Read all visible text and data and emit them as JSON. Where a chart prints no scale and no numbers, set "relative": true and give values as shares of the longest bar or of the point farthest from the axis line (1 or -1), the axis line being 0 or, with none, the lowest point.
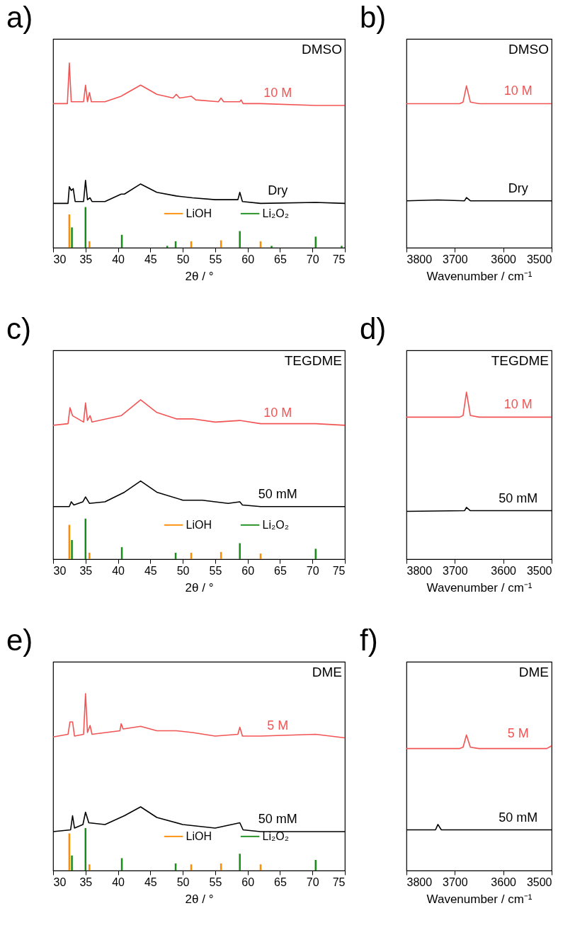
{
  "chart_data": [
    {
      "type": "line",
      "title": "a)",
      "xlabel": "2θ / °",
      "relative": true,
      "xlim": [
        30,
        75
      ],
      "xticks": [
        30,
        35,
        40,
        45,
        50,
        55,
        60,
        65,
        70,
        75
      ],
      "legend": "bottom right",
      "annotations": [
        "DMSO"
      ],
      "series": [
        {
          "name": "10 M",
          "color": "#f25454",
          "x": [
            30,
            32.2,
            32.5,
            32.8,
            34.7,
            35,
            35.3,
            35.6,
            35.9,
            38,
            40.5,
            41,
            43.5,
            46,
            48.5,
            49,
            49.5,
            51.3,
            52,
            55.5,
            55.9,
            56.3,
            58.8,
            59,
            59.3,
            62,
            70.5,
            75
          ],
          "values": [
            0.78,
            0.78,
            1.0,
            0.79,
            0.79,
            0.88,
            0.79,
            0.84,
            0.79,
            0.79,
            0.82,
            0.83,
            0.88,
            0.83,
            0.81,
            0.83,
            0.81,
            0.82,
            0.8,
            0.79,
            0.81,
            0.79,
            0.79,
            0.8,
            0.78,
            0.78,
            0.77,
            0.77
          ]
        },
        {
          "name": "Dry",
          "color": "#000000",
          "x": [
            30,
            32.3,
            32.5,
            32.8,
            33.1,
            33.4,
            34.7,
            35,
            35.3,
            35.7,
            36,
            38,
            40.5,
            41,
            43.5,
            46,
            49,
            51.5,
            55,
            58.5,
            58.8,
            59.2,
            62,
            70.5,
            75
          ],
          "values": [
            0.24,
            0.24,
            0.33,
            0.31,
            0.32,
            0.25,
            0.25,
            0.365,
            0.26,
            0.27,
            0.25,
            0.25,
            0.29,
            0.29,
            0.345,
            0.3,
            0.28,
            0.27,
            0.26,
            0.26,
            0.3,
            0.25,
            0.24,
            0.245,
            0.24
          ]
        },
        {
          "name": "LiOH",
          "type": "bar",
          "color": "#ff8c00",
          "x": [
            32.5,
            35.6,
            51.3,
            55.9,
            62
          ],
          "values": [
            0.18,
            0.035,
            0.035,
            0.04,
            0.035
          ]
        },
        {
          "name": "Li₂O₂",
          "type": "bar",
          "color": "#1a8c1a",
          "x": [
            32.9,
            35,
            40.6,
            47.6,
            48.9,
            58.8,
            63.7,
            70.5,
            74.5
          ],
          "values": [
            0.11,
            0.22,
            0.07,
            0.01,
            0.035,
            0.09,
            0.01,
            0.06,
            0.01
          ]
        }
      ]
    },
    {
      "type": "line",
      "title": "b)",
      "xlabel": "Wavenumber / cm⁻¹",
      "relative": true,
      "xlim": [
        3800,
        3500
      ],
      "xticks": [
        3800,
        3700,
        3600,
        3500
      ],
      "annotations": [
        "DMSO"
      ],
      "series": [
        {
          "name": "10 M",
          "color": "#f25454",
          "x": [
            3800,
            3690,
            3683,
            3676,
            3668,
            3660,
            3650,
            3500
          ],
          "values": [
            0.89,
            0.89,
            0.9,
            1.0,
            0.9,
            0.895,
            0.89,
            0.89
          ]
        },
        {
          "name": "Dry",
          "color": "#000000",
          "x": [
            3800,
            3735,
            3680,
            3676,
            3668,
            3500
          ],
          "values": [
            0.29,
            0.295,
            0.29,
            0.31,
            0.29,
            0.29
          ]
        }
      ]
    },
    {
      "type": "line",
      "title": "c)",
      "xlabel": "2θ / °",
      "relative": true,
      "xlim": [
        30,
        75
      ],
      "xticks": [
        30,
        35,
        40,
        45,
        50,
        55,
        60,
        65,
        70,
        75
      ],
      "legend": "bottom right",
      "annotations": [
        "TEGDME"
      ],
      "series": [
        {
          "name": "10 M",
          "color": "#f25454",
          "x": [
            30,
            32.3,
            32.6,
            33,
            34.7,
            35,
            35.3,
            35.7,
            36,
            40.5,
            43.5,
            46,
            49,
            51.5,
            55,
            58.8,
            62,
            70.5,
            75
          ],
          "values": [
            0.84,
            0.85,
            0.95,
            0.9,
            0.86,
            0.98,
            0.87,
            0.9,
            0.86,
            0.9,
            1.0,
            0.92,
            0.88,
            0.88,
            0.86,
            0.87,
            0.85,
            0.85,
            0.84
          ]
        },
        {
          "name": "50 mM",
          "color": "#000000",
          "x": [
            30,
            32.5,
            32.8,
            33.2,
            34.6,
            35,
            35.6,
            38,
            41,
            43.5,
            46,
            50,
            53,
            57,
            58.8,
            59.2,
            62,
            75
          ],
          "values": [
            0.33,
            0.33,
            0.36,
            0.34,
            0.36,
            0.39,
            0.35,
            0.36,
            0.42,
            0.49,
            0.42,
            0.37,
            0.37,
            0.35,
            0.36,
            0.34,
            0.33,
            0.33
          ]
        },
        {
          "name": "LiOH",
          "type": "bar",
          "color": "#ff8c00",
          "x": [
            32.5,
            35.6,
            51.3,
            55.9,
            62
          ],
          "values": [
            0.215,
            0.04,
            0.04,
            0.045,
            0.035
          ]
        },
        {
          "name": "Li₂O₂",
          "type": "bar",
          "color": "#1a8c1a",
          "x": [
            32.9,
            35,
            40.6,
            48.9,
            58.8,
            70.5
          ],
          "values": [
            0.12,
            0.254,
            0.075,
            0.04,
            0.1,
            0.065
          ]
        }
      ]
    },
    {
      "type": "line",
      "title": "d)",
      "xlabel": "Wavenumber / cm⁻¹",
      "relative": true,
      "xlim": [
        3800,
        3500
      ],
      "xticks": [
        3800,
        3700,
        3600,
        3500
      ],
      "annotations": [
        "TEGDME"
      ],
      "series": [
        {
          "name": "10 M",
          "color": "#f25454",
          "x": [
            3800,
            3690,
            3683,
            3676,
            3668,
            3650,
            3500
          ],
          "values": [
            0.85,
            0.85,
            0.86,
            1.0,
            0.86,
            0.85,
            0.85
          ]
        },
        {
          "name": "50 mM",
          "color": "#000000",
          "x": [
            3800,
            3680,
            3676,
            3668,
            3500
          ],
          "values": [
            0.286,
            0.29,
            0.31,
            0.29,
            0.29
          ]
        }
      ]
    },
    {
      "type": "line",
      "title": "e)",
      "xlabel": "2θ / °",
      "relative": true,
      "xlim": [
        30,
        75
      ],
      "xticks": [
        30,
        35,
        40,
        45,
        50,
        55,
        60,
        65,
        70,
        75
      ],
      "legend": "bottom right",
      "annotations": [
        "DME"
      ],
      "series": [
        {
          "name": "5 M",
          "color": "#f25454",
          "x": [
            30,
            32.3,
            32.6,
            33,
            33.3,
            34.7,
            35,
            35.3,
            35.7,
            36,
            40.3,
            40.5,
            40.8,
            43.5,
            46,
            49,
            51.5,
            55,
            58.5,
            58.8,
            59.2,
            62,
            70.5,
            75
          ],
          "values": [
            0.755,
            0.77,
            0.84,
            0.84,
            0.76,
            0.77,
            1.0,
            0.78,
            0.82,
            0.77,
            0.79,
            0.83,
            0.8,
            0.815,
            0.79,
            0.79,
            0.78,
            0.76,
            0.77,
            0.81,
            0.76,
            0.76,
            0.77,
            0.75
          ]
        },
        {
          "name": "50 mM",
          "color": "#000000",
          "x": [
            30,
            32.7,
            33,
            33.3,
            34.6,
            35,
            35.5,
            38,
            41,
            43.5,
            46,
            50,
            55,
            58.8,
            59.3,
            62,
            75
          ],
          "values": [
            0.22,
            0.23,
            0.31,
            0.24,
            0.26,
            0.33,
            0.27,
            0.26,
            0.31,
            0.36,
            0.3,
            0.26,
            0.24,
            0.27,
            0.23,
            0.22,
            0.22
          ]
        },
        {
          "name": "LiOH",
          "type": "bar",
          "color": "#ff8c00",
          "x": [
            32.5,
            35.6,
            51.3,
            55.9,
            62
          ],
          "values": [
            0.21,
            0.035,
            0.035,
            0.04,
            0.035
          ]
        },
        {
          "name": "Li₂O₂",
          "type": "bar",
          "color": "#1a8c1a",
          "x": [
            32.9,
            35,
            40.6,
            48.9,
            58.8,
            70.5
          ],
          "values": [
            0.085,
            0.24,
            0.07,
            0.04,
            0.095,
            0.06
          ]
        }
      ]
    },
    {
      "type": "line",
      "title": "f)",
      "xlabel": "Wavenumber / cm⁻¹",
      "relative": true,
      "xlim": [
        3800,
        3500
      ],
      "xticks": [
        3800,
        3700,
        3600,
        3500
      ],
      "annotations": [
        "DME"
      ],
      "series": [
        {
          "name": "5 M",
          "color": "#f25454",
          "x": [
            3800,
            3690,
            3683,
            3676,
            3668,
            3650,
            3510,
            3500
          ],
          "values": [
            0.9,
            0.9,
            0.91,
            1.0,
            0.91,
            0.9,
            0.9,
            0.92
          ]
        },
        {
          "name": "50 mM",
          "color": "#000000",
          "x": [
            3800,
            3740,
            3735,
            3728,
            3500
          ],
          "values": [
            0.3,
            0.3,
            0.34,
            0.3,
            0.3
          ]
        }
      ]
    }
  ]
}
